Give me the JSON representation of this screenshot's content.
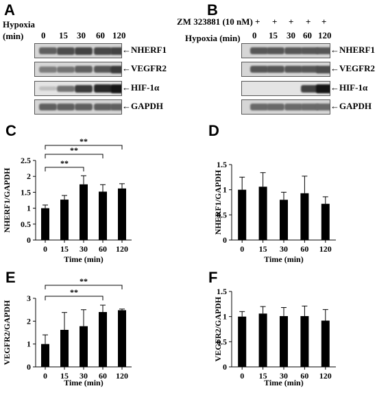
{
  "panels": {
    "A": {
      "letter": "A",
      "hypoxia_label_line1": "Hypoxia",
      "hypoxia_label_line2": "(min)",
      "time_labels": [
        "0",
        "15",
        "30",
        "60",
        "120"
      ],
      "rows": [
        {
          "name": "NHERF1",
          "label": "←NHERF1",
          "intensity": [
            0.55,
            0.65,
            0.7,
            0.68,
            0.7
          ]
        },
        {
          "name": "VEGFR2",
          "label": "←VEGFR2",
          "intensity": [
            0.4,
            0.45,
            0.55,
            0.6,
            0.75
          ]
        },
        {
          "name": "HIF-1a",
          "label": "←HIF-1α",
          "intensity": [
            0.05,
            0.45,
            0.75,
            0.85,
            0.95
          ]
        },
        {
          "name": "GAPDH",
          "label": "←GAPDH",
          "intensity": [
            0.55,
            0.55,
            0.55,
            0.55,
            0.55
          ]
        }
      ]
    },
    "B": {
      "letter": "B",
      "treatment_label": "ZM 323881 (10 nM)",
      "plus_signs": [
        "+",
        "+",
        "+",
        "+",
        "+"
      ],
      "hypoxia_label": "Hypoxia (min)",
      "time_labels": [
        "0",
        "15",
        "30",
        "60",
        "120"
      ],
      "rows": [
        {
          "name": "NHERF1",
          "label": "←NHERF1",
          "intensity": [
            0.6,
            0.6,
            0.6,
            0.6,
            0.6
          ]
        },
        {
          "name": "VEGFR2",
          "label": "←VEGFR2",
          "intensity": [
            0.6,
            0.6,
            0.6,
            0.6,
            0.65
          ]
        },
        {
          "name": "HIF-1a",
          "label": "←HIF-1α",
          "intensity": [
            0.0,
            0.0,
            0.0,
            0.7,
            0.95
          ]
        },
        {
          "name": "GAPDH",
          "label": "←GAPDH",
          "intensity": [
            0.5,
            0.5,
            0.5,
            0.5,
            0.5
          ]
        }
      ]
    },
    "C": {
      "letter": "C"
    },
    "D": {
      "letter": "D"
    },
    "E": {
      "letter": "E"
    },
    "F": {
      "letter": "F"
    }
  },
  "chart_data": [
    {
      "panel": "C",
      "type": "bar",
      "categories": [
        "0",
        "15",
        "30",
        "60",
        "120"
      ],
      "values": [
        1.0,
        1.27,
        1.75,
        1.52,
        1.62
      ],
      "errors": [
        0.1,
        0.13,
        0.27,
        0.22,
        0.15
      ],
      "ylabel": "NHERF1/GAPDH",
      "xlabel": "Time (min)",
      "ylim": [
        0,
        2.5
      ],
      "yticks": [
        "0",
        "0.5",
        "1",
        "1.5",
        "2",
        "2.5"
      ],
      "significance": [
        {
          "from": "0",
          "to": "30",
          "label": "**"
        },
        {
          "from": "0",
          "to": "60",
          "label": "**"
        },
        {
          "from": "0",
          "to": "120",
          "label": "**"
        }
      ]
    },
    {
      "panel": "D",
      "type": "bar",
      "categories": [
        "0",
        "15",
        "30",
        "60",
        "120"
      ],
      "values": [
        1.0,
        1.06,
        0.8,
        0.93,
        0.72
      ],
      "errors": [
        0.25,
        0.28,
        0.15,
        0.34,
        0.14
      ],
      "ylabel": "NHERF1/GAPDH",
      "xlabel": "Time (min)",
      "ylim": [
        0,
        1.5
      ],
      "yticks": [
        "0",
        "0.5",
        "1",
        "1.5"
      ],
      "significance": []
    },
    {
      "panel": "E",
      "type": "bar",
      "categories": [
        "0",
        "15",
        "30",
        "60",
        "120"
      ],
      "values": [
        1.0,
        1.62,
        1.78,
        2.4,
        2.48
      ],
      "errors": [
        0.4,
        0.76,
        0.72,
        0.3,
        0.05
      ],
      "ylabel": "VEGFR2/GAPDH",
      "xlabel": "Time (min)",
      "ylim": [
        0,
        3
      ],
      "yticks": [
        "0",
        "1",
        "2",
        "3"
      ],
      "significance": [
        {
          "from": "0",
          "to": "60",
          "label": "**"
        },
        {
          "from": "0",
          "to": "120",
          "label": "**"
        }
      ]
    },
    {
      "panel": "F",
      "type": "bar",
      "categories": [
        "0",
        "15",
        "30",
        "60",
        "120"
      ],
      "values": [
        1.0,
        1.06,
        1.01,
        1.01,
        0.92
      ],
      "errors": [
        0.1,
        0.14,
        0.17,
        0.2,
        0.22
      ],
      "ylabel": "VEGFR2/GAPDH",
      "xlabel": "Time (min)",
      "ylim": [
        0,
        1.5
      ],
      "yticks": [
        "0",
        "0.5",
        "1",
        "1.5"
      ],
      "significance": []
    }
  ]
}
